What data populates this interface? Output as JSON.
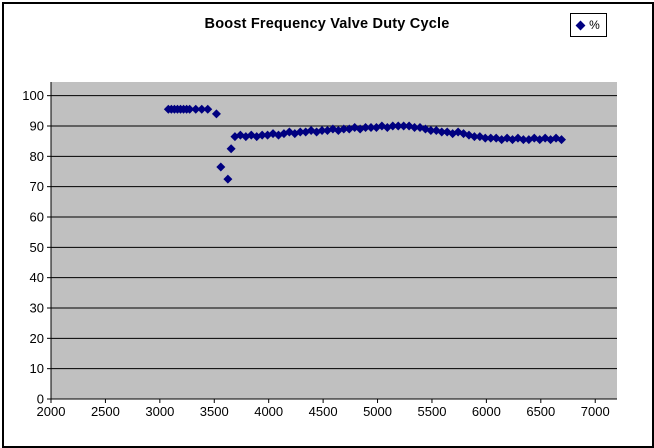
{
  "window": {
    "background": "#ffffff",
    "border_color": "#000000"
  },
  "chart_data": {
    "type": "scatter",
    "title": "Boost Frequency Valve Duty Cycle",
    "xlabel": "",
    "ylabel": "",
    "plot_bg": "#c0c0c0",
    "grid": true,
    "gridline_color": "#000000",
    "marker": "diamond",
    "marker_color": "#000080",
    "legend": {
      "position": "top-right",
      "entries": [
        {
          "label": "%",
          "marker": "diamond",
          "color": "#000080"
        }
      ]
    },
    "x_axis": {
      "min": 2000,
      "max": 7200,
      "tick_step": 500,
      "ticks": [
        2000,
        2500,
        3000,
        3500,
        4000,
        4500,
        5000,
        5500,
        6000,
        6500,
        7000
      ]
    },
    "y_axis": {
      "min": 0,
      "max": 104.5,
      "tick_step": 10,
      "ticks": [
        0,
        10,
        20,
        30,
        40,
        50,
        60,
        70,
        80,
        90,
        100
      ]
    },
    "series": [
      {
        "name": "%",
        "points": [
          [
            3078,
            95.5
          ],
          [
            3106,
            95.5
          ],
          [
            3134,
            95.5
          ],
          [
            3162,
            95.5
          ],
          [
            3190,
            95.5
          ],
          [
            3218,
            95.5
          ],
          [
            3246,
            95.5
          ],
          [
            3274,
            95.5
          ],
          [
            3330,
            95.5
          ],
          [
            3385,
            95.5
          ],
          [
            3440,
            95.5
          ],
          [
            3520,
            94
          ],
          [
            3560,
            76.5
          ],
          [
            3625,
            72.5
          ],
          [
            3655,
            82.5
          ],
          [
            3690,
            86.5
          ],
          [
            3740,
            87
          ],
          [
            3790,
            86.5
          ],
          [
            3840,
            87
          ],
          [
            3890,
            86.5
          ],
          [
            3940,
            87
          ],
          [
            3990,
            87
          ],
          [
            4040,
            87.5
          ],
          [
            4090,
            87
          ],
          [
            4140,
            87.5
          ],
          [
            4190,
            88
          ],
          [
            4240,
            87.5
          ],
          [
            4290,
            88
          ],
          [
            4340,
            88
          ],
          [
            4390,
            88.5
          ],
          [
            4440,
            88
          ],
          [
            4490,
            88.5
          ],
          [
            4540,
            88.5
          ],
          [
            4590,
            89
          ],
          [
            4640,
            88.5
          ],
          [
            4690,
            89
          ],
          [
            4740,
            89
          ],
          [
            4790,
            89.5
          ],
          [
            4840,
            89
          ],
          [
            4890,
            89.5
          ],
          [
            4940,
            89.5
          ],
          [
            4990,
            89.5
          ],
          [
            5040,
            90
          ],
          [
            5090,
            89.5
          ],
          [
            5140,
            90
          ],
          [
            5190,
            90
          ],
          [
            5240,
            90
          ],
          [
            5290,
            90
          ],
          [
            5340,
            89.5
          ],
          [
            5390,
            89.5
          ],
          [
            5440,
            89
          ],
          [
            5490,
            88.5
          ],
          [
            5540,
            88.5
          ],
          [
            5590,
            88
          ],
          [
            5640,
            88
          ],
          [
            5690,
            87.5
          ],
          [
            5740,
            88
          ],
          [
            5790,
            87.5
          ],
          [
            5840,
            87
          ],
          [
            5890,
            86.5
          ],
          [
            5940,
            86.5
          ],
          [
            5990,
            86
          ],
          [
            6040,
            86
          ],
          [
            6090,
            86
          ],
          [
            6140,
            85.5
          ],
          [
            6190,
            86
          ],
          [
            6240,
            85.5
          ],
          [
            6290,
            86
          ],
          [
            6340,
            85.5
          ],
          [
            6390,
            85.5
          ],
          [
            6440,
            86
          ],
          [
            6490,
            85.5
          ],
          [
            6540,
            86
          ],
          [
            6590,
            85.5
          ],
          [
            6640,
            86
          ],
          [
            6690,
            85.5
          ]
        ]
      }
    ]
  }
}
